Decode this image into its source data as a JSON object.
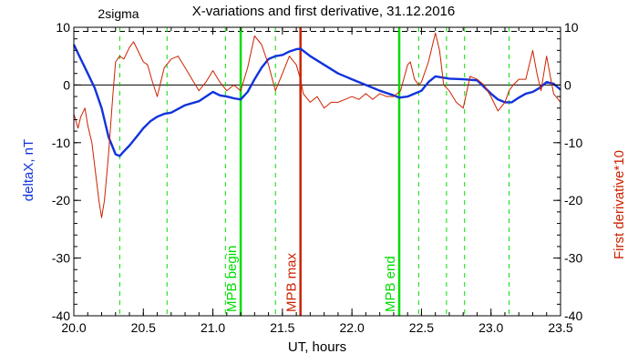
{
  "chart_data": {
    "type": "line",
    "title": "X-variations and first derivative, 31.12.2016",
    "xlabel": "UT, hours",
    "ylabel_left": "deltaX, nT",
    "ylabel_right": "First derivative*10",
    "xlim": [
      20.0,
      23.5
    ],
    "ylim": [
      -40,
      10
    ],
    "x_ticks": [
      20.0,
      20.5,
      21.0,
      21.5,
      22.0,
      22.5,
      23.0,
      23.5
    ],
    "x_tick_labels": [
      "20.0",
      "20.5",
      "21.0",
      "21.5",
      "22.0",
      "22.5",
      "23.0",
      "23.5"
    ],
    "y_ticks": [
      -40,
      -30,
      -20,
      -10,
      0,
      10
    ],
    "y_tick_labels": [
      "-40",
      "-30",
      "-20",
      "-10",
      "0",
      "10"
    ],
    "sigma_label": "2sigma",
    "sigma_level": 9.3,
    "colors": {
      "deltax": "#1133dd",
      "derivative": "#cc2200",
      "green": "#00dd00",
      "mpb_max": "#cc2200",
      "axis": "#000000"
    },
    "dashed_green_lines": [
      20.33,
      20.67,
      21.09,
      21.45,
      22.48,
      22.68,
      22.81,
      23.13
    ],
    "vertical_markers": [
      {
        "x": 21.2,
        "label": "MPB begin",
        "color": "#00dd00"
      },
      {
        "x": 21.63,
        "label": "MPB max",
        "color": "#cc2200"
      },
      {
        "x": 22.34,
        "label": "MPB end",
        "color": "#00dd00"
      }
    ],
    "series": [
      {
        "name": "deltaX, nT",
        "color": "#1133dd",
        "x": [
          20.0,
          20.05,
          20.1,
          20.15,
          20.2,
          20.25,
          20.3,
          20.33,
          20.36,
          20.4,
          20.45,
          20.5,
          20.55,
          20.6,
          20.65,
          20.7,
          20.8,
          20.9,
          21.0,
          21.05,
          21.1,
          21.15,
          21.2,
          21.25,
          21.3,
          21.35,
          21.4,
          21.45,
          21.5,
          21.55,
          21.6,
          21.63,
          21.7,
          21.8,
          21.9,
          22.0,
          22.1,
          22.2,
          22.3,
          22.34,
          22.4,
          22.45,
          22.5,
          22.55,
          22.6,
          22.65,
          22.7,
          22.8,
          22.9,
          23.0,
          23.05,
          23.1,
          23.15,
          23.2,
          23.25,
          23.3,
          23.35,
          23.4,
          23.45,
          23.5
        ],
        "values": [
          7.0,
          4.5,
          2.0,
          -0.5,
          -4.0,
          -9.0,
          -12.0,
          -12.3,
          -11.5,
          -10.5,
          -9.0,
          -7.5,
          -6.3,
          -5.5,
          -5.0,
          -4.8,
          -3.5,
          -2.8,
          -1.2,
          -1.8,
          -2.0,
          -2.3,
          -2.5,
          -1.2,
          1.0,
          3.0,
          4.5,
          5.0,
          5.2,
          5.8,
          6.2,
          6.3,
          5.0,
          3.5,
          2.0,
          1.0,
          0.0,
          -1.0,
          -1.8,
          -2.2,
          -2.0,
          -1.5,
          -1.0,
          0.5,
          1.5,
          1.3,
          1.1,
          1.0,
          0.8,
          -1.5,
          -2.5,
          -3.0,
          -3.0,
          -2.2,
          -1.5,
          -1.2,
          -0.5,
          0.5,
          0.2,
          -0.8
        ]
      },
      {
        "name": "First derivative*10",
        "color": "#cc2200",
        "x": [
          20.0,
          20.03,
          20.05,
          20.08,
          20.1,
          20.13,
          20.15,
          20.18,
          20.2,
          20.22,
          20.25,
          20.28,
          20.3,
          20.33,
          20.36,
          20.4,
          20.43,
          20.46,
          20.5,
          20.53,
          20.56,
          20.6,
          20.65,
          20.7,
          20.75,
          20.8,
          20.85,
          20.9,
          20.95,
          21.0,
          21.05,
          21.1,
          21.15,
          21.2,
          21.25,
          21.3,
          21.35,
          21.4,
          21.45,
          21.5,
          21.55,
          21.6,
          21.63,
          21.65,
          21.7,
          21.75,
          21.8,
          21.85,
          21.9,
          21.95,
          22.0,
          22.05,
          22.1,
          22.15,
          22.2,
          22.25,
          22.3,
          22.35,
          22.4,
          22.42,
          22.45,
          22.48,
          22.5,
          22.55,
          22.6,
          22.63,
          22.66,
          22.7,
          22.75,
          22.8,
          22.85,
          22.9,
          22.95,
          23.0,
          23.05,
          23.1,
          23.13,
          23.16,
          23.2,
          23.25,
          23.3,
          23.33,
          23.36,
          23.4,
          23.45,
          23.5
        ],
        "values": [
          -5.0,
          -7.5,
          -5.5,
          -4.0,
          -7.0,
          -10.0,
          -14.0,
          -20.0,
          -23.0,
          -20.0,
          -12.0,
          -2.0,
          4.0,
          5.0,
          4.5,
          6.5,
          7.5,
          6.0,
          4.0,
          3.5,
          1.0,
          -2.0,
          3.0,
          4.5,
          5.0,
          3.0,
          1.0,
          -1.0,
          0.5,
          2.5,
          0.5,
          -1.0,
          0.0,
          -1.0,
          3.0,
          8.5,
          7.0,
          3.5,
          -1.0,
          2.0,
          5.0,
          3.5,
          1.0,
          -1.5,
          -3.0,
          -2.0,
          -4.0,
          -3.0,
          -3.0,
          -2.5,
          -2.0,
          -2.5,
          -1.5,
          -2.5,
          -1.5,
          -2.0,
          -2.0,
          -1.0,
          3.5,
          4.0,
          1.0,
          0.0,
          0.5,
          4.0,
          9.0,
          6.0,
          0.0,
          -1.0,
          -3.0,
          -4.0,
          1.5,
          1.0,
          0.0,
          -2.0,
          -4.5,
          -3.0,
          -1.0,
          0.0,
          1.0,
          1.0,
          6.0,
          2.0,
          -1.0,
          5.0,
          -1.5,
          -3.0
        ]
      }
    ],
    "grid": false
  }
}
